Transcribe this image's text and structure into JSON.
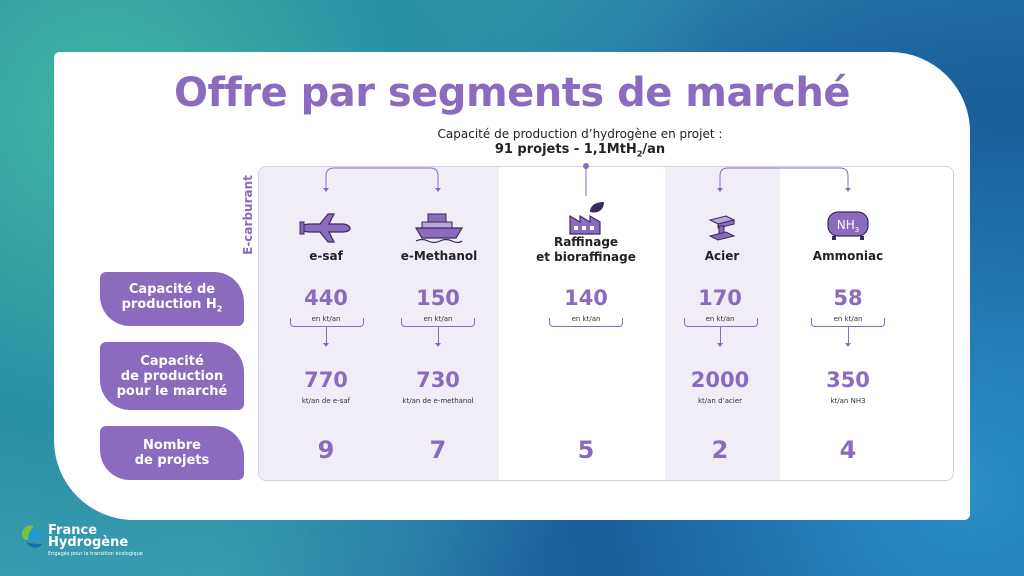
{
  "title": "Offre par segments de marché",
  "subtitle": {
    "line1": "Capacité de production d’hydrogène en projet :",
    "line2_prefix": "91 projets - 1,1MtH",
    "line2_sub": "2",
    "line2_suffix": "/an"
  },
  "e_carburant_label": "E-carburant",
  "row_labels": {
    "capacity_h2_line1": "Capacité de",
    "capacity_h2_line2": "production H",
    "capacity_h2_sub": "2",
    "capacity_market_line1": "Capacité",
    "capacity_market_line2": "de production",
    "capacity_market_line3": "pour le marché",
    "projects_line1": "Nombre",
    "projects_line2": "de projets"
  },
  "segments": [
    {
      "name": "e-saf",
      "icon": "airplane-icon",
      "h2_value": "440",
      "h2_unit": "en kt/an",
      "market_value": "770",
      "market_unit": "kt/an de e-saf",
      "projects": "9"
    },
    {
      "name": "e-Methanol",
      "icon": "ship-icon",
      "h2_value": "150",
      "h2_unit": "en kt/an",
      "market_value": "730",
      "market_unit": "kt/an de e-methanol",
      "projects": "7"
    },
    {
      "name_line1": "Raffinage",
      "name_line2": "et bioraffinage",
      "icon": "factory-leaf-icon",
      "h2_value": "140",
      "h2_unit": "en kt/an",
      "market_value": "",
      "market_unit": "",
      "projects": "5"
    },
    {
      "name": "Acier",
      "icon": "steel-beam-icon",
      "h2_value": "170",
      "h2_unit": "en kt/an",
      "market_value": "2000",
      "market_unit": "kt/an d’acier",
      "projects": "2"
    },
    {
      "name": "Ammoniac",
      "icon": "ammonia-tank-icon",
      "icon_text": "NH3",
      "h2_value": "58",
      "h2_unit": "en kt/an",
      "market_value": "350",
      "market_unit": "kt/an NH3",
      "projects": "4"
    }
  ],
  "logo": {
    "line1": "France",
    "line2": "Hydrogène",
    "tagline": "Engagés pour la transition écologique"
  },
  "colors": {
    "accent": "#8a6bbd",
    "light_accent": "#f1edf7"
  }
}
